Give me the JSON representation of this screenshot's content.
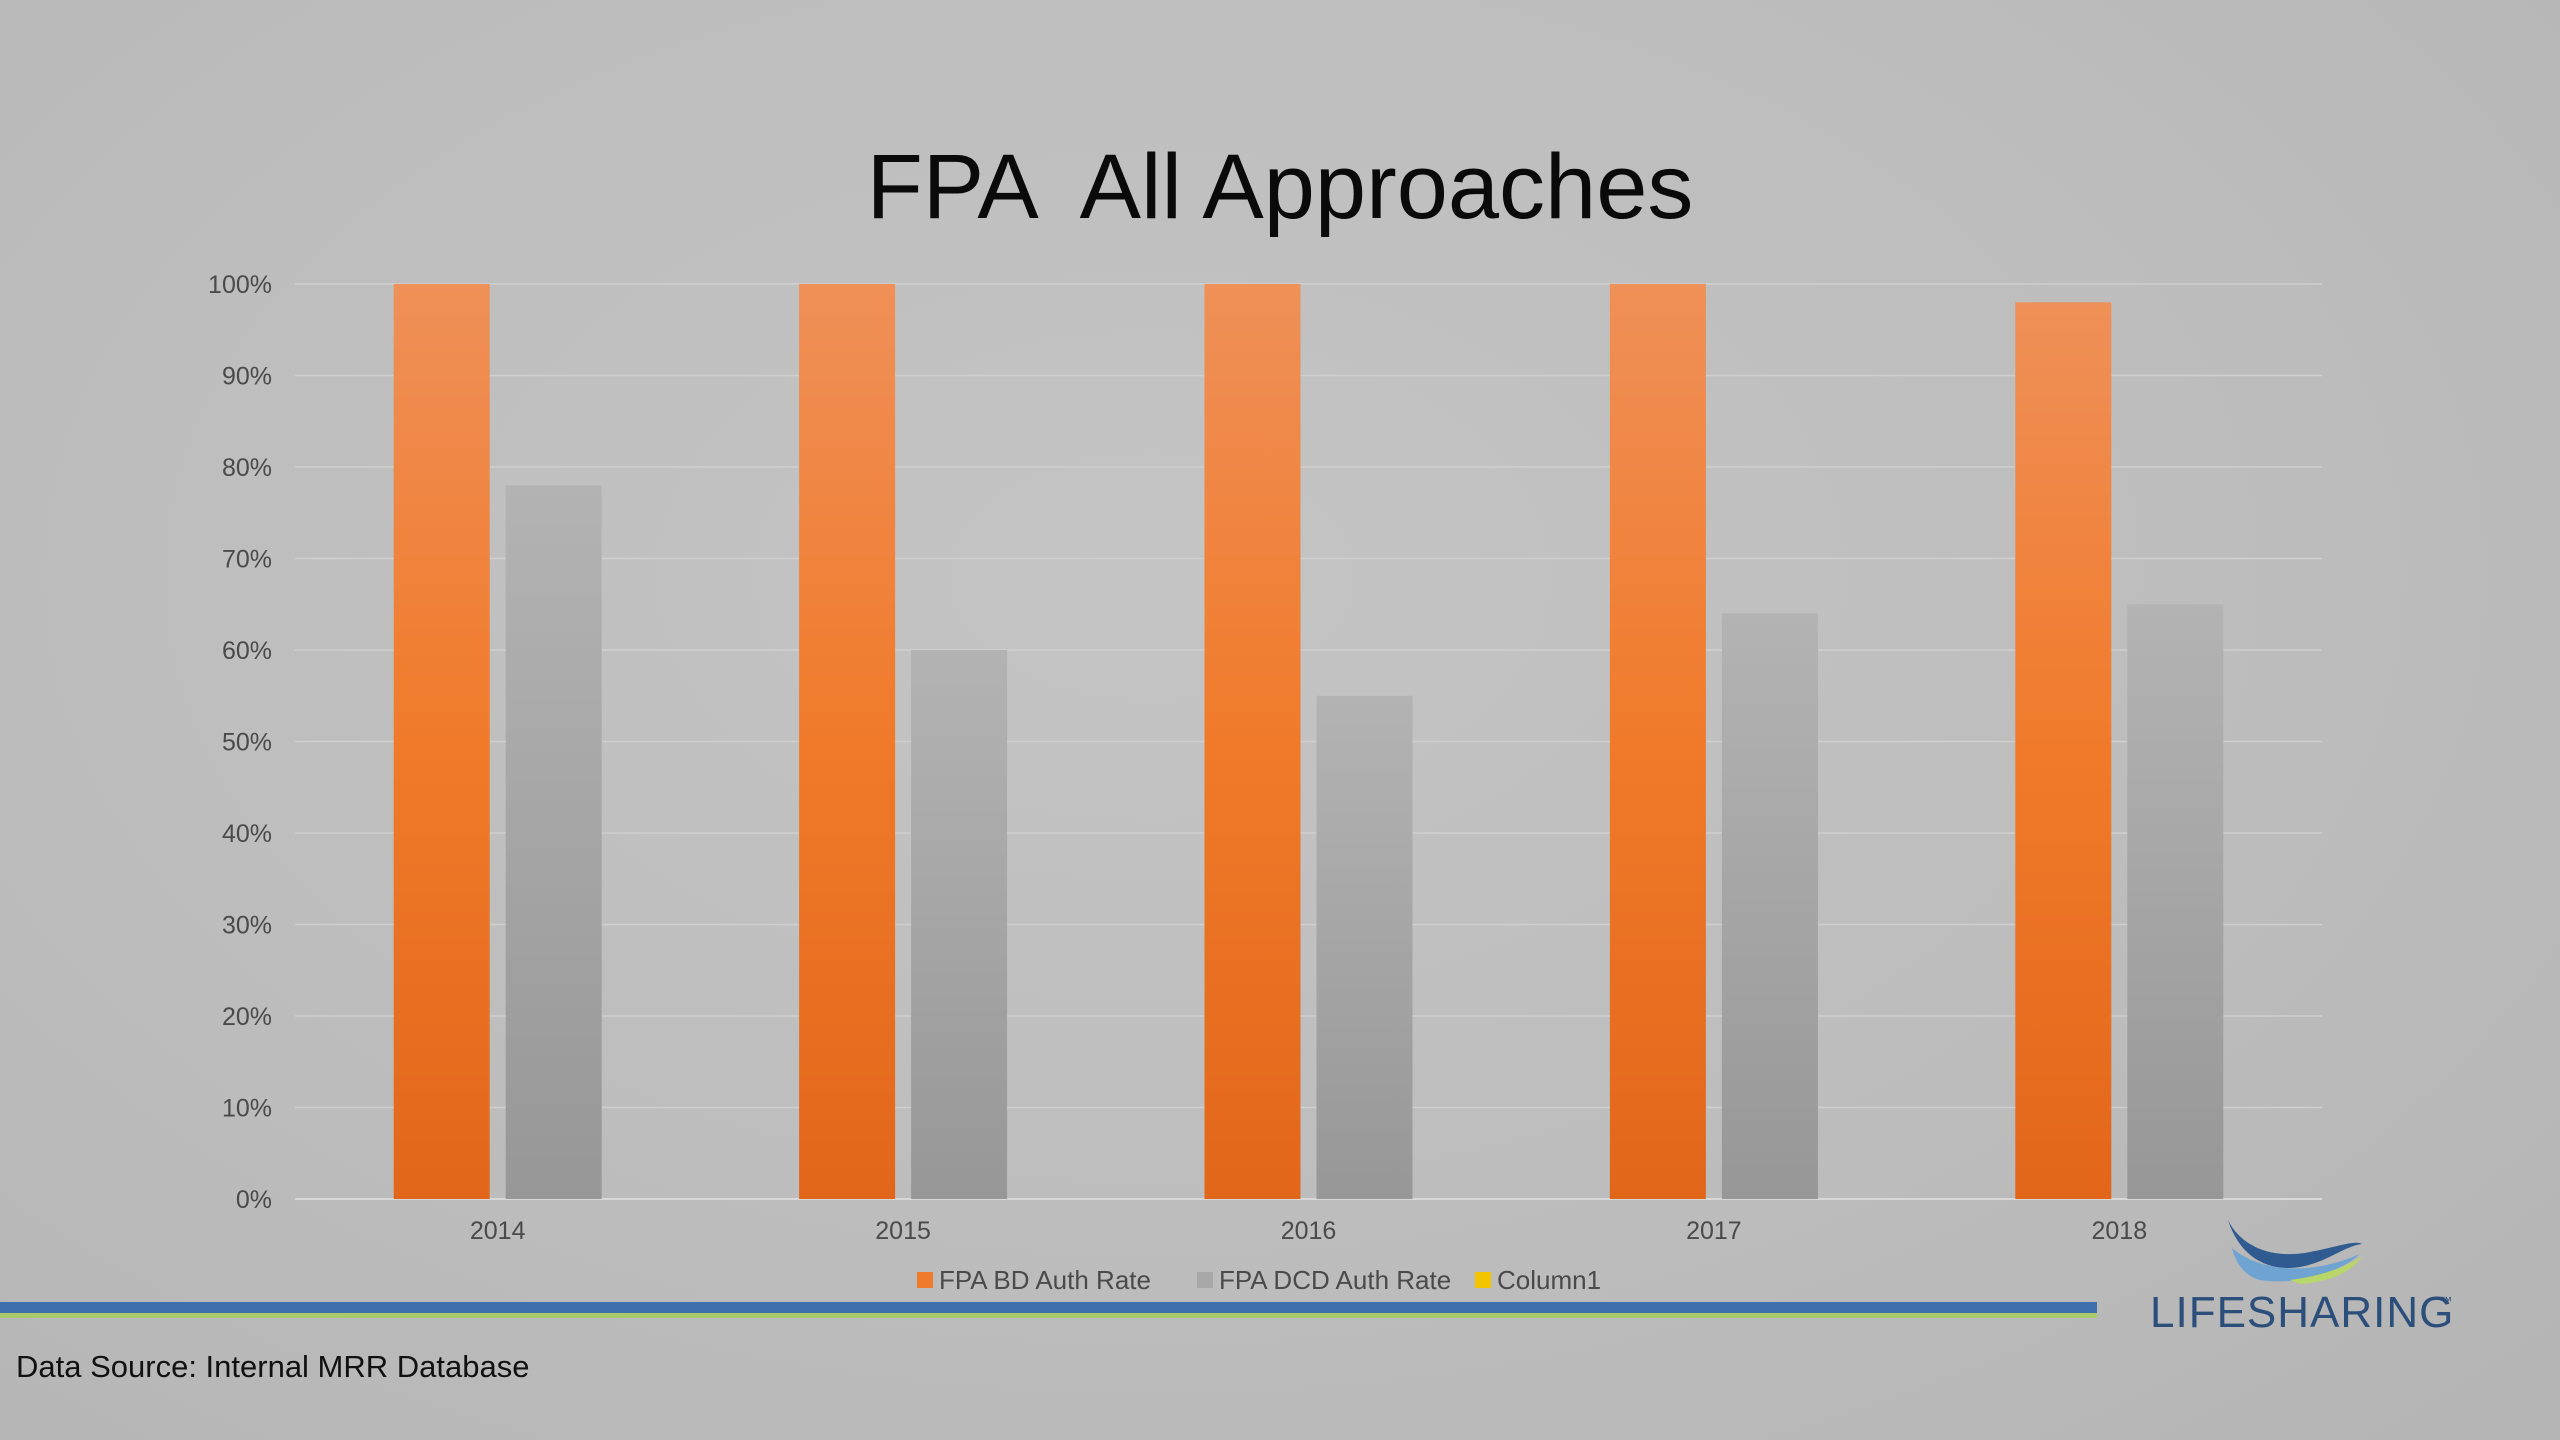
{
  "chart_data": {
    "type": "bar",
    "title": "FPA  All Approaches",
    "categories": [
      "2014",
      "2015",
      "2016",
      "2017",
      "2018"
    ],
    "series": [
      {
        "name": "FPA BD Auth Rate",
        "values": [
          1.0,
          1.0,
          1.0,
          1.0,
          0.98
        ],
        "color": "#ee7a2c"
      },
      {
        "name": "FPA DCD Auth Rate",
        "values": [
          0.78,
          0.6,
          0.55,
          0.64,
          0.65
        ],
        "color": "#a8a8a8"
      },
      {
        "name": "Column1",
        "values": [
          0,
          0,
          0,
          0,
          0
        ],
        "color": "#f5c400"
      }
    ],
    "y_ticks": [
      "0%",
      "10%",
      "20%",
      "30%",
      "40%",
      "50%",
      "60%",
      "70%",
      "80%",
      "90%",
      "100%"
    ],
    "ylim": [
      0,
      1
    ],
    "grid": true,
    "legend_position": "bottom"
  },
  "source_note": "Data Source: Internal MRR Database",
  "logo": {
    "text": "LIFESHARING",
    "tm": "™"
  }
}
